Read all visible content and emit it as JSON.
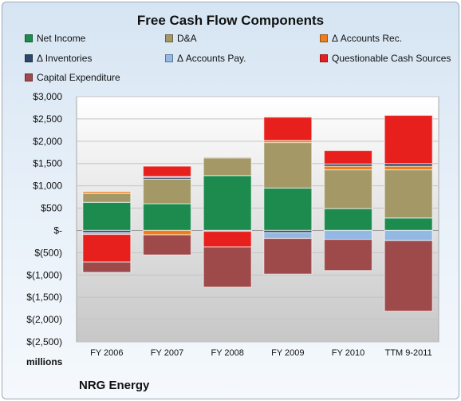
{
  "chart_data": {
    "type": "bar",
    "stacked": true,
    "title": "Free Cash Flow Components",
    "categories": [
      "FY 2006",
      "FY 2007",
      "FY 2008",
      "FY 2009",
      "FY 2010",
      "TTM 9-2011"
    ],
    "ylim": [
      -2500,
      3000
    ],
    "yticks": [
      3000,
      2500,
      2000,
      1500,
      1000,
      500,
      0,
      -500,
      -1000,
      -1500,
      -2000,
      -2500
    ],
    "ytick_labels": [
      "$3,000",
      "$2,500",
      "$2,000",
      "$1,500",
      "$1,000",
      "$500",
      "$-",
      "$(500)",
      "$(1,000)",
      "$(1,500)",
      "$(2,000)",
      "$(2,500)"
    ],
    "units_label": "millions",
    "grid": true,
    "legend_position": "top",
    "series": [
      {
        "name": "Net Income",
        "color": "#1e8b4e",
        "values": [
          630,
          600,
          1230,
          950,
          490,
          280
        ]
      },
      {
        "name": "D&A",
        "color": "#a39866",
        "values": [
          200,
          550,
          400,
          1020,
          870,
          1080
        ]
      },
      {
        "name": "Δ Accounts Rec.",
        "color": "#ee7d1c",
        "values": [
          40,
          -100,
          10,
          50,
          80,
          80
        ]
      },
      {
        "name": "Δ Inventories",
        "color": "#2d4768",
        "values": [
          -50,
          40,
          -10,
          -50,
          50,
          60
        ]
      },
      {
        "name": "Δ Accounts Pay.",
        "color": "#93b8e4",
        "values": [
          -40,
          20,
          -10,
          -130,
          -200,
          -230
        ]
      },
      {
        "name": "Questionable Cash Sources",
        "color": "#e8201d",
        "values": [
          -620,
          230,
          -350,
          520,
          300,
          1080
        ]
      },
      {
        "name": "Capital Expenditure",
        "color": "#9e4a4a",
        "values": [
          -230,
          -450,
          -900,
          -800,
          -700,
          -1580
        ]
      }
    ]
  },
  "footer": {
    "company": "NRG Energy"
  }
}
